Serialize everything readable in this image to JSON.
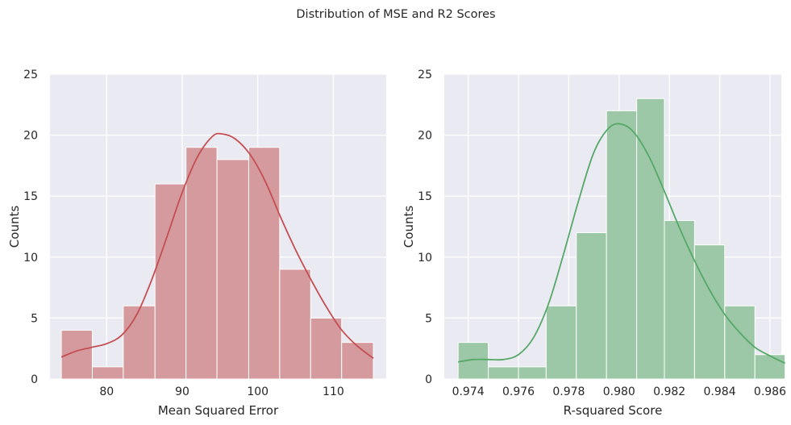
{
  "figure": {
    "title": "Distribution of MSE and R2 Scores",
    "background": "#ffffff",
    "panel_background": "#eaeaf2",
    "grid_color": "#ffffff"
  },
  "chart_data": [
    {
      "type": "histogram",
      "id": "mse",
      "title": "",
      "xlabel": "Mean Squared Error",
      "ylabel": "Counts",
      "color": "#c44e52",
      "bar_fill": "#d49a9d",
      "xlim": [
        72.5,
        117.0
      ],
      "ylim": [
        0,
        25
      ],
      "xticks": [
        80,
        90,
        100,
        110
      ],
      "yticks": [
        0,
        5,
        10,
        15,
        20,
        25
      ],
      "grid": true,
      "bins": [
        {
          "start": 74.0,
          "end": 78.1,
          "count": 4
        },
        {
          "start": 78.1,
          "end": 82.2,
          "count": 1
        },
        {
          "start": 82.2,
          "end": 86.4,
          "count": 6
        },
        {
          "start": 86.4,
          "end": 90.5,
          "count": 16
        },
        {
          "start": 90.5,
          "end": 94.6,
          "count": 19
        },
        {
          "start": 94.6,
          "end": 98.8,
          "count": 18
        },
        {
          "start": 98.8,
          "end": 102.9,
          "count": 19
        },
        {
          "start": 102.9,
          "end": 107.0,
          "count": 9
        },
        {
          "start": 107.0,
          "end": 111.1,
          "count": 5
        },
        {
          "start": 111.1,
          "end": 115.3,
          "count": 3
        }
      ],
      "kde": {
        "x": [
          74.0,
          76.0,
          78.0,
          80.0,
          82.0,
          84.0,
          86.0,
          88.0,
          90.0,
          92.0,
          94.0,
          95.3,
          97.0,
          99.0,
          101.0,
          103.0,
          105.0,
          107.0,
          109.0,
          111.0,
          113.0,
          115.3
        ],
        "y": [
          1.8,
          2.3,
          2.6,
          2.9,
          3.6,
          5.3,
          8.2,
          11.7,
          15.3,
          18.2,
          19.9,
          20.1,
          19.7,
          18.4,
          16.2,
          13.3,
          10.6,
          8.2,
          6.0,
          4.1,
          2.8,
          1.7
        ]
      }
    },
    {
      "type": "histogram",
      "id": "r2",
      "title": "",
      "xlabel": "R-squared Score",
      "ylabel": "Counts",
      "color": "#55a868",
      "bar_fill": "#9cc8a7",
      "xlim": [
        0.97305,
        0.98645
      ],
      "ylim": [
        0,
        25
      ],
      "xticks": [
        0.974,
        0.976,
        0.978,
        0.98,
        0.982,
        0.984,
        0.986
      ],
      "xtick_labels": [
        "0.974",
        "0.976",
        "0.978",
        "0.980",
        "0.982",
        "0.984",
        "0.986"
      ],
      "yticks": [
        0,
        5,
        10,
        15,
        20,
        25
      ],
      "grid": true,
      "bins": [
        {
          "start": 0.9736,
          "end": 0.9748,
          "count": 3
        },
        {
          "start": 0.9748,
          "end": 0.976,
          "count": 1
        },
        {
          "start": 0.976,
          "end": 0.9771,
          "count": 1
        },
        {
          "start": 0.9771,
          "end": 0.9783,
          "count": 6
        },
        {
          "start": 0.9783,
          "end": 0.9795,
          "count": 12
        },
        {
          "start": 0.9795,
          "end": 0.9807,
          "count": 22
        },
        {
          "start": 0.9807,
          "end": 0.9818,
          "count": 23
        },
        {
          "start": 0.9818,
          "end": 0.983,
          "count": 13
        },
        {
          "start": 0.983,
          "end": 0.9842,
          "count": 11
        },
        {
          "start": 0.9842,
          "end": 0.9854,
          "count": 6
        },
        {
          "start": 0.9854,
          "end": 0.9866,
          "count": 2
        }
      ],
      "kde": {
        "x": [
          0.9736,
          0.9742,
          0.9748,
          0.9754,
          0.976,
          0.9766,
          0.9772,
          0.9778,
          0.9784,
          0.979,
          0.9796,
          0.9801,
          0.9806,
          0.9812,
          0.9818,
          0.9824,
          0.983,
          0.9836,
          0.9842,
          0.9848,
          0.9854,
          0.986,
          0.9866
        ],
        "y": [
          1.4,
          1.6,
          1.6,
          1.6,
          2.0,
          3.4,
          6.2,
          10.3,
          14.7,
          18.6,
          20.6,
          20.9,
          20.2,
          18.2,
          15.4,
          12.4,
          9.7,
          7.3,
          5.3,
          3.8,
          2.6,
          1.9,
          1.3
        ]
      }
    }
  ]
}
